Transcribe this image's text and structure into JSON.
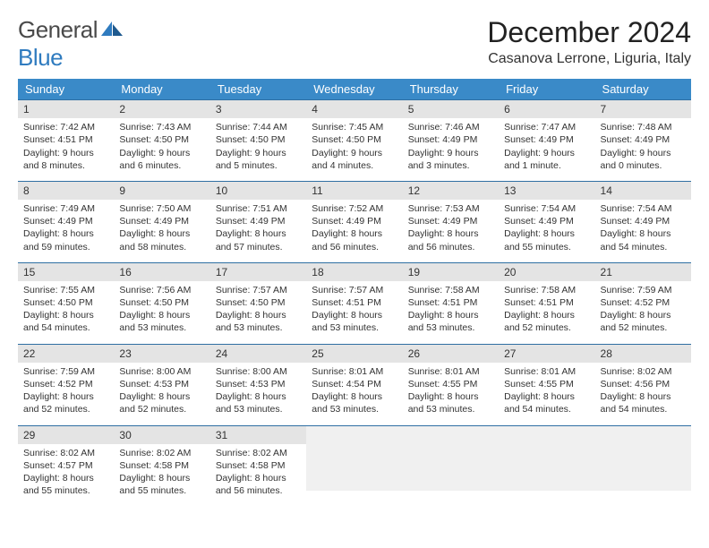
{
  "logo": {
    "text1": "General",
    "text2": "Blue"
  },
  "title": "December 2024",
  "location": "Casanova Lerrone, Liguria, Italy",
  "colors": {
    "header_bg": "#3a8ac8",
    "header_text": "#ffffff",
    "daynum_bg": "#e4e4e4",
    "row_border": "#2f6fa3",
    "logo_gray": "#4a4a4a",
    "logo_blue": "#2f7bbf"
  },
  "weekdays": [
    "Sunday",
    "Monday",
    "Tuesday",
    "Wednesday",
    "Thursday",
    "Friday",
    "Saturday"
  ],
  "weeks": [
    [
      {
        "n": "1",
        "sr": "7:42 AM",
        "ss": "4:51 PM",
        "dl": "9 hours and 8 minutes."
      },
      {
        "n": "2",
        "sr": "7:43 AM",
        "ss": "4:50 PM",
        "dl": "9 hours and 6 minutes."
      },
      {
        "n": "3",
        "sr": "7:44 AM",
        "ss": "4:50 PM",
        "dl": "9 hours and 5 minutes."
      },
      {
        "n": "4",
        "sr": "7:45 AM",
        "ss": "4:50 PM",
        "dl": "9 hours and 4 minutes."
      },
      {
        "n": "5",
        "sr": "7:46 AM",
        "ss": "4:49 PM",
        "dl": "9 hours and 3 minutes."
      },
      {
        "n": "6",
        "sr": "7:47 AM",
        "ss": "4:49 PM",
        "dl": "9 hours and 1 minute."
      },
      {
        "n": "7",
        "sr": "7:48 AM",
        "ss": "4:49 PM",
        "dl": "9 hours and 0 minutes."
      }
    ],
    [
      {
        "n": "8",
        "sr": "7:49 AM",
        "ss": "4:49 PM",
        "dl": "8 hours and 59 minutes."
      },
      {
        "n": "9",
        "sr": "7:50 AM",
        "ss": "4:49 PM",
        "dl": "8 hours and 58 minutes."
      },
      {
        "n": "10",
        "sr": "7:51 AM",
        "ss": "4:49 PM",
        "dl": "8 hours and 57 minutes."
      },
      {
        "n": "11",
        "sr": "7:52 AM",
        "ss": "4:49 PM",
        "dl": "8 hours and 56 minutes."
      },
      {
        "n": "12",
        "sr": "7:53 AM",
        "ss": "4:49 PM",
        "dl": "8 hours and 56 minutes."
      },
      {
        "n": "13",
        "sr": "7:54 AM",
        "ss": "4:49 PM",
        "dl": "8 hours and 55 minutes."
      },
      {
        "n": "14",
        "sr": "7:54 AM",
        "ss": "4:49 PM",
        "dl": "8 hours and 54 minutes."
      }
    ],
    [
      {
        "n": "15",
        "sr": "7:55 AM",
        "ss": "4:50 PM",
        "dl": "8 hours and 54 minutes."
      },
      {
        "n": "16",
        "sr": "7:56 AM",
        "ss": "4:50 PM",
        "dl": "8 hours and 53 minutes."
      },
      {
        "n": "17",
        "sr": "7:57 AM",
        "ss": "4:50 PM",
        "dl": "8 hours and 53 minutes."
      },
      {
        "n": "18",
        "sr": "7:57 AM",
        "ss": "4:51 PM",
        "dl": "8 hours and 53 minutes."
      },
      {
        "n": "19",
        "sr": "7:58 AM",
        "ss": "4:51 PM",
        "dl": "8 hours and 53 minutes."
      },
      {
        "n": "20",
        "sr": "7:58 AM",
        "ss": "4:51 PM",
        "dl": "8 hours and 52 minutes."
      },
      {
        "n": "21",
        "sr": "7:59 AM",
        "ss": "4:52 PM",
        "dl": "8 hours and 52 minutes."
      }
    ],
    [
      {
        "n": "22",
        "sr": "7:59 AM",
        "ss": "4:52 PM",
        "dl": "8 hours and 52 minutes."
      },
      {
        "n": "23",
        "sr": "8:00 AM",
        "ss": "4:53 PM",
        "dl": "8 hours and 52 minutes."
      },
      {
        "n": "24",
        "sr": "8:00 AM",
        "ss": "4:53 PM",
        "dl": "8 hours and 53 minutes."
      },
      {
        "n": "25",
        "sr": "8:01 AM",
        "ss": "4:54 PM",
        "dl": "8 hours and 53 minutes."
      },
      {
        "n": "26",
        "sr": "8:01 AM",
        "ss": "4:55 PM",
        "dl": "8 hours and 53 minutes."
      },
      {
        "n": "27",
        "sr": "8:01 AM",
        "ss": "4:55 PM",
        "dl": "8 hours and 54 minutes."
      },
      {
        "n": "28",
        "sr": "8:02 AM",
        "ss": "4:56 PM",
        "dl": "8 hours and 54 minutes."
      }
    ],
    [
      {
        "n": "29",
        "sr": "8:02 AM",
        "ss": "4:57 PM",
        "dl": "8 hours and 55 minutes."
      },
      {
        "n": "30",
        "sr": "8:02 AM",
        "ss": "4:58 PM",
        "dl": "8 hours and 55 minutes."
      },
      {
        "n": "31",
        "sr": "8:02 AM",
        "ss": "4:58 PM",
        "dl": "8 hours and 56 minutes."
      },
      null,
      null,
      null,
      null
    ]
  ],
  "labels": {
    "sunrise": "Sunrise:",
    "sunset": "Sunset:",
    "daylight": "Daylight:"
  }
}
